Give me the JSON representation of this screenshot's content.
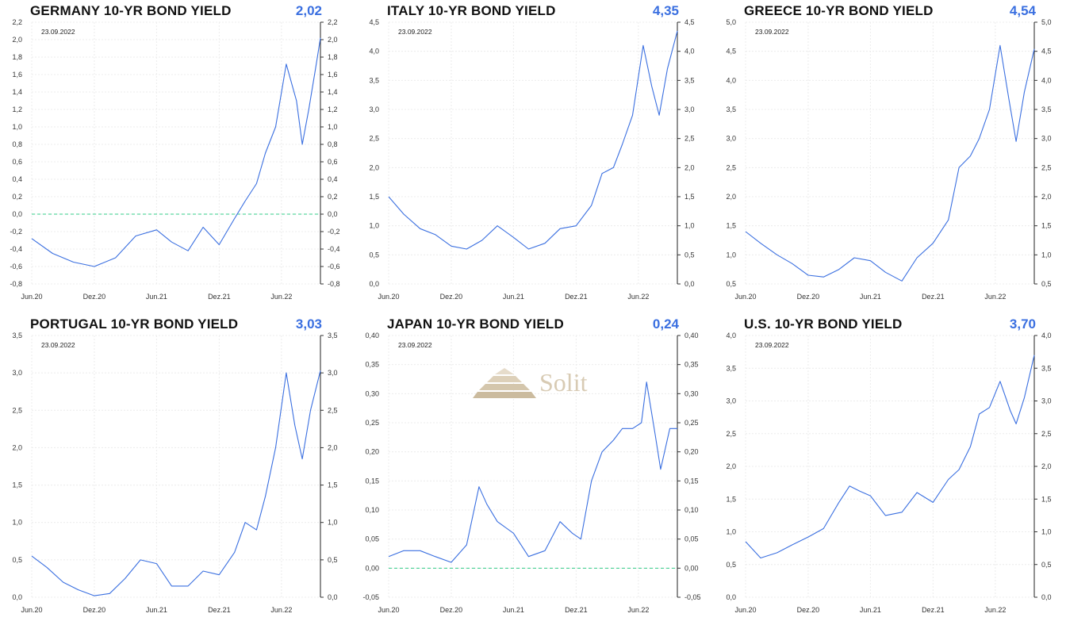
{
  "date": "23.09.2022",
  "x_labels": [
    "Jun.20",
    "Dez.20",
    "Jun.21",
    "Dez.21",
    "Jun.22"
  ],
  "colors": {
    "line": "#3a6fe0",
    "zero_line": "#33cc88",
    "last_value": "#3a6fe0"
  },
  "watermark": "Solit",
  "chart_data": [
    {
      "type": "line",
      "title": "GERMANY 10-YR BOND YIELD",
      "last_value": "2,02",
      "ylim": [
        -0.8,
        2.2
      ],
      "yticks": [
        "-0,8",
        "-0,6",
        "-0,4",
        "-0,2",
        "0,0",
        "0,2",
        "0,4",
        "0,6",
        "0,8",
        "1,0",
        "1,2",
        "1,4",
        "1,6",
        "1,8",
        "2,0",
        "2,2"
      ],
      "zero_line": true,
      "x": [
        "2020-06-01",
        "2020-08-01",
        "2020-10-01",
        "2020-12-01",
        "2021-02-01",
        "2021-04-01",
        "2021-06-01",
        "2021-07-15",
        "2021-09-01",
        "2021-10-15",
        "2021-12-01",
        "2022-01-15",
        "2022-02-15",
        "2022-03-20",
        "2022-04-15",
        "2022-05-15",
        "2022-06-15",
        "2022-07-15",
        "2022-08-01",
        "2022-08-20",
        "2022-09-10",
        "2022-09-23"
      ],
      "values": [
        -0.28,
        -0.45,
        -0.55,
        -0.6,
        -0.5,
        -0.25,
        -0.18,
        -0.32,
        -0.42,
        -0.15,
        -0.35,
        -0.05,
        0.15,
        0.35,
        0.7,
        1.0,
        1.72,
        1.3,
        0.8,
        1.2,
        1.7,
        2.02
      ]
    },
    {
      "type": "line",
      "title": "ITALY 10-YR BOND YIELD",
      "last_value": "4,35",
      "ylim": [
        0,
        4.5
      ],
      "yticks": [
        "0,0",
        "0,5",
        "1,0",
        "1,5",
        "2,0",
        "2,5",
        "3,0",
        "3,5",
        "4,0",
        "4,5"
      ],
      "zero_line": false,
      "x": [
        "2020-06-01",
        "2020-07-15",
        "2020-09-01",
        "2020-10-15",
        "2020-12-01",
        "2021-01-15",
        "2021-03-01",
        "2021-04-15",
        "2021-06-01",
        "2021-07-15",
        "2021-09-01",
        "2021-10-15",
        "2021-12-01",
        "2022-01-15",
        "2022-02-15",
        "2022-03-20",
        "2022-04-15",
        "2022-05-15",
        "2022-06-15",
        "2022-07-10",
        "2022-08-01",
        "2022-08-25",
        "2022-09-23"
      ],
      "values": [
        1.5,
        1.2,
        0.95,
        0.85,
        0.65,
        0.6,
        0.75,
        1.0,
        0.8,
        0.6,
        0.7,
        0.95,
        1.0,
        1.35,
        1.9,
        2.0,
        2.4,
        2.9,
        4.1,
        3.4,
        2.9,
        3.7,
        4.35
      ]
    },
    {
      "type": "line",
      "title": "GREECE 10-YR BOND YIELD",
      "last_value": "4,54",
      "ylim": [
        0.5,
        5.0
      ],
      "yticks": [
        "0,5",
        "1,0",
        "1,5",
        "2,0",
        "2,5",
        "3,0",
        "3,5",
        "4,0",
        "4,5",
        "5,0"
      ],
      "zero_line": false,
      "x": [
        "2020-06-01",
        "2020-07-15",
        "2020-09-01",
        "2020-10-15",
        "2020-12-01",
        "2021-01-15",
        "2021-03-01",
        "2021-04-15",
        "2021-06-01",
        "2021-07-15",
        "2021-09-01",
        "2021-10-15",
        "2021-12-01",
        "2022-01-15",
        "2022-02-15",
        "2022-03-20",
        "2022-04-15",
        "2022-05-15",
        "2022-06-15",
        "2022-07-10",
        "2022-08-01",
        "2022-08-25",
        "2022-09-23"
      ],
      "values": [
        1.4,
        1.2,
        1.0,
        0.85,
        0.65,
        0.62,
        0.75,
        0.95,
        0.9,
        0.7,
        0.55,
        0.95,
        1.2,
        1.6,
        2.5,
        2.7,
        3.0,
        3.5,
        4.6,
        3.7,
        2.95,
        3.8,
        4.54
      ]
    },
    {
      "type": "line",
      "title": "PORTUGAL 10-YR BOND YIELD",
      "last_value": "3,03",
      "ylim": [
        0,
        3.5
      ],
      "yticks": [
        "0,0",
        "0,5",
        "1,0",
        "1,5",
        "2,0",
        "2,5",
        "3,0",
        "3,5"
      ],
      "zero_line": false,
      "x": [
        "2020-06-01",
        "2020-07-15",
        "2020-09-01",
        "2020-10-15",
        "2020-12-01",
        "2021-01-15",
        "2021-03-01",
        "2021-04-15",
        "2021-06-01",
        "2021-07-15",
        "2021-09-01",
        "2021-10-15",
        "2021-12-01",
        "2022-01-15",
        "2022-02-15",
        "2022-03-20",
        "2022-04-15",
        "2022-05-15",
        "2022-06-15",
        "2022-07-10",
        "2022-08-01",
        "2022-08-25",
        "2022-09-23"
      ],
      "values": [
        0.55,
        0.4,
        0.2,
        0.1,
        0.02,
        0.05,
        0.25,
        0.5,
        0.45,
        0.15,
        0.15,
        0.35,
        0.3,
        0.6,
        1.0,
        0.9,
        1.35,
        2.0,
        3.0,
        2.3,
        1.85,
        2.5,
        3.03
      ]
    },
    {
      "type": "line",
      "title": "JAPAN 10-YR BOND YIELD",
      "last_value": "0,24",
      "ylim": [
        -0.05,
        0.4
      ],
      "yticks": [
        "-0,05",
        "0,00",
        "0,05",
        "0,10",
        "0,15",
        "0,20",
        "0,25",
        "0,30",
        "0,35",
        "0,40"
      ],
      "zero_line": true,
      "x": [
        "2020-06-01",
        "2020-07-15",
        "2020-09-01",
        "2020-10-15",
        "2020-12-01",
        "2021-01-15",
        "2021-02-20",
        "2021-03-15",
        "2021-04-15",
        "2021-06-01",
        "2021-07-15",
        "2021-09-01",
        "2021-10-15",
        "2021-11-20",
        "2021-12-15",
        "2022-01-15",
        "2022-02-15",
        "2022-03-20",
        "2022-04-15",
        "2022-05-15",
        "2022-06-10",
        "2022-06-25",
        "2022-07-20",
        "2022-08-05",
        "2022-09-01",
        "2022-09-23"
      ],
      "values": [
        0.02,
        0.03,
        0.03,
        0.02,
        0.01,
        0.04,
        0.14,
        0.11,
        0.08,
        0.06,
        0.02,
        0.03,
        0.08,
        0.06,
        0.05,
        0.15,
        0.2,
        0.22,
        0.24,
        0.24,
        0.25,
        0.32,
        0.23,
        0.17,
        0.24,
        0.24
      ]
    },
    {
      "type": "line",
      "title": "U.S. 10-YR BOND YIELD",
      "last_value": "3,70",
      "ylim": [
        0,
        4.0
      ],
      "yticks": [
        "0,0",
        "0,5",
        "1,0",
        "1,5",
        "2,0",
        "2,5",
        "3,0",
        "3,5",
        "4,0"
      ],
      "zero_line": false,
      "x": [
        "2020-06-01",
        "2020-07-15",
        "2020-09-01",
        "2020-10-15",
        "2020-12-01",
        "2021-01-15",
        "2021-03-01",
        "2021-04-01",
        "2021-05-01",
        "2021-06-01",
        "2021-07-15",
        "2021-09-01",
        "2021-10-15",
        "2021-12-01",
        "2022-01-15",
        "2022-02-15",
        "2022-03-20",
        "2022-04-15",
        "2022-05-15",
        "2022-06-15",
        "2022-07-15",
        "2022-08-01",
        "2022-08-25",
        "2022-09-23"
      ],
      "values": [
        0.85,
        0.6,
        0.68,
        0.8,
        0.92,
        1.05,
        1.45,
        1.7,
        1.62,
        1.55,
        1.25,
        1.3,
        1.6,
        1.45,
        1.8,
        1.95,
        2.3,
        2.8,
        2.9,
        3.3,
        2.85,
        2.65,
        3.05,
        3.7
      ]
    }
  ]
}
